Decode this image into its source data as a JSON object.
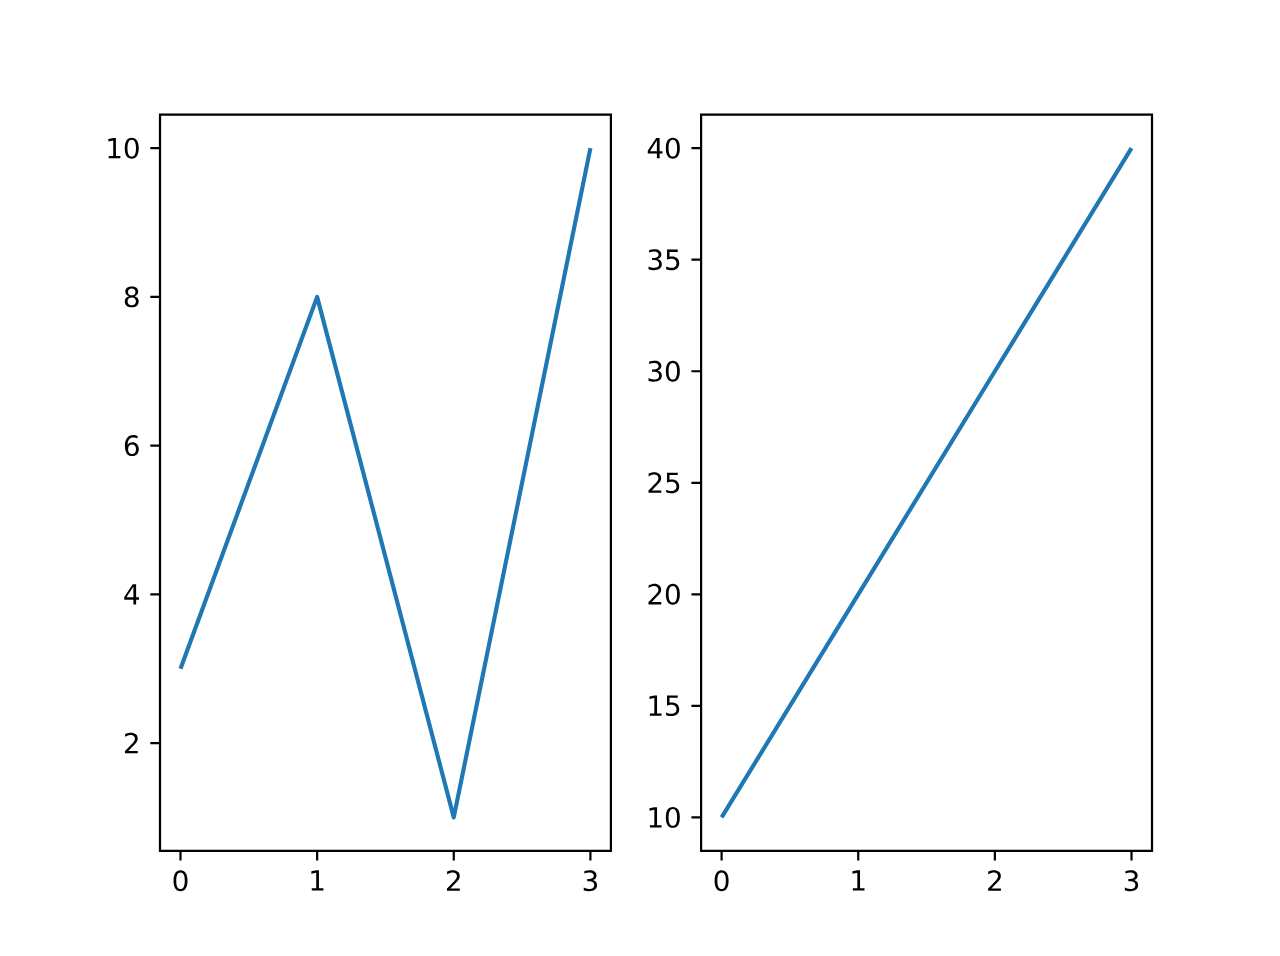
{
  "chart_data": [
    {
      "type": "line",
      "x": [
        0,
        1,
        2,
        3
      ],
      "values": [
        3,
        8,
        1,
        10
      ],
      "color": "#1f77b4",
      "xlim": [
        -0.15,
        3.15
      ],
      "ylim": [
        0.55,
        10.45
      ],
      "xticks": [
        0,
        1,
        2,
        3
      ],
      "yticks": [
        2,
        4,
        6,
        8,
        10
      ]
    },
    {
      "type": "line",
      "x": [
        0,
        1,
        2,
        3
      ],
      "values": [
        10,
        20,
        30,
        40
      ],
      "color": "#1f77b4",
      "xlim": [
        -0.15,
        3.15
      ],
      "ylim": [
        8.5,
        41.5
      ],
      "xticks": [
        0,
        1,
        2,
        3
      ],
      "yticks": [
        10,
        15,
        20,
        25,
        30,
        35,
        40
      ]
    }
  ]
}
